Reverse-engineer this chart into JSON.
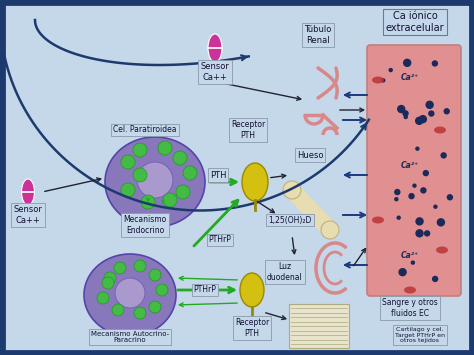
{
  "bg_outer": "#1c3a6e",
  "bg_inner": "#c5d8ea",
  "colors": {
    "dark_blue": "#1c3a6e",
    "navy_arrow": "#1c3a7e",
    "green_arrow": "#22aa22",
    "black_arrow": "#222233",
    "purple_cell": "#8877bb",
    "gold_receptor": "#d4c010",
    "pink_organ": "#d88888",
    "magenta_sensor": "#cc3399",
    "blood_pink": "#e09090",
    "blood_dot": "#1a2a5a",
    "box_bg": "#ddeeff",
    "bone_color": "#e8ddb0"
  },
  "labels": {
    "ca_ionico": "Ca iónico\nextracelular",
    "tubulo_renal": "Túbulo\nRenal",
    "sensor_ca_top": "Sensor\nCa++",
    "cel_paratiroidea": "Cel. Paratiroidea",
    "receptor_pth_top": "Receptor\nPTH",
    "pth": "PTH",
    "hueso": "Hueso",
    "mecanismo_endocrino": "Mecanismo\nEndocrino",
    "pthrp_mid": "PTHrP",
    "oh_d": "1,25(OH)₂D",
    "luz_duodenal": "Luz\nduodenal",
    "sensor_ca_left": "Sensor\nCa++",
    "pthrp_low": "PTHrP",
    "mecanismo_autocrino": "Mecanismo Autocrino-\nParacrino",
    "receptor_pth_bot": "Receptor\nPTH",
    "sangre": "Sangre y otros\nfluidos EC",
    "cartilago": "Cartilago y cel.\nTarget PTHrP en\notros tejidos",
    "ca2p_top": "Ca²⁺",
    "ca2p_mid": "Ca²⁺",
    "ca2p_bot": "Ca²⁺"
  }
}
